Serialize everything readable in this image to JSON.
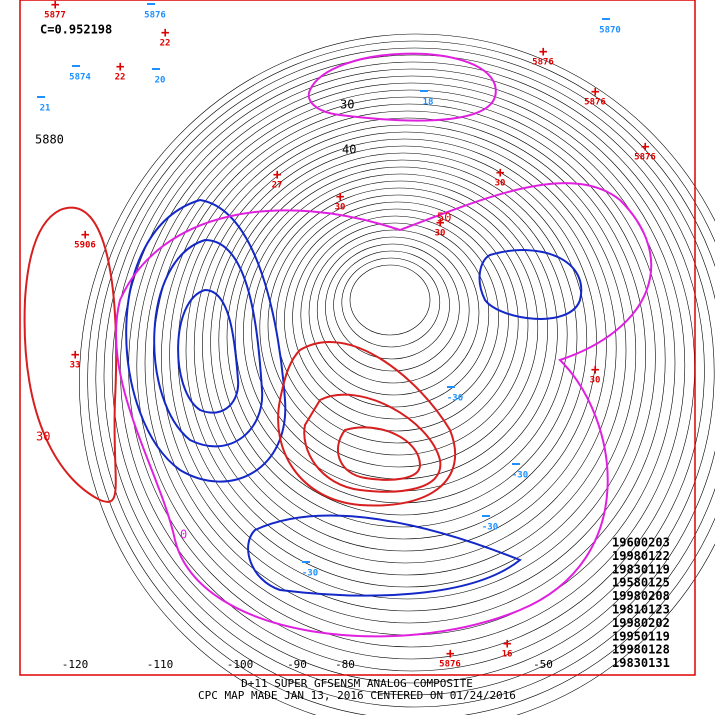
{
  "header": {
    "correlation": "C=0.952198"
  },
  "footer": {
    "line1": "D+11 SUPER GFSENSM ANALOG COMPOSITE",
    "line2": "CPC MAP MADE JAN 13, 2016 CENTERED ON 01/24/2016"
  },
  "analog_dates": [
    "19600203",
    "19980122",
    "19830119",
    "19580125",
    "19980208",
    "19810123",
    "19980202",
    "19950119",
    "19980128",
    "19830131"
  ],
  "longitude_labels": [
    "-120",
    "-110",
    "-100",
    "-90",
    "-80",
    "-50"
  ],
  "highs": [
    "5877",
    "22",
    "22",
    "5876",
    "5876",
    "5876",
    "27",
    "30",
    "30",
    "30",
    "5906",
    "33",
    "30",
    "5876",
    "16"
  ],
  "lows": [
    "5876",
    "5870",
    "5874",
    "20",
    "21",
    "18",
    "-30",
    "-30",
    "-30",
    "-30"
  ],
  "contour_labels": [
    "5880",
    "30",
    "40",
    "50",
    "30",
    "0"
  ]
}
